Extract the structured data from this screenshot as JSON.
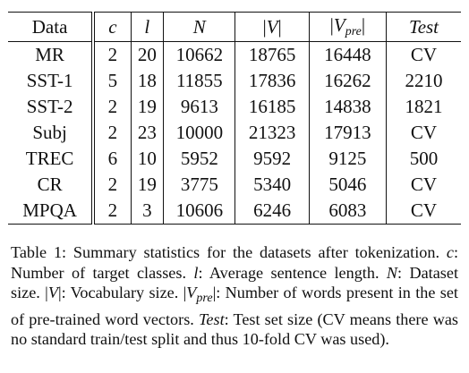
{
  "table": {
    "headers": {
      "data": "Data",
      "c": "c",
      "l": "l",
      "n": "N",
      "v_open": "|",
      "v": "V",
      "v_close": "|",
      "vpre_open": "|",
      "vpre_base": "V",
      "vpre_sub": "pre",
      "vpre_close": "|",
      "test": "Test"
    },
    "rows": [
      {
        "data": "MR",
        "c": "2",
        "l": "20",
        "n": "10662",
        "v": "18765",
        "vpre": "16448",
        "test": "CV"
      },
      {
        "data": "SST-1",
        "c": "5",
        "l": "18",
        "n": "11855",
        "v": "17836",
        "vpre": "16262",
        "test": "2210"
      },
      {
        "data": "SST-2",
        "c": "2",
        "l": "19",
        "n": "9613",
        "v": "16185",
        "vpre": "14838",
        "test": "1821"
      },
      {
        "data": "Subj",
        "c": "2",
        "l": "23",
        "n": "10000",
        "v": "21323",
        "vpre": "17913",
        "test": "CV"
      },
      {
        "data": "TREC",
        "c": "6",
        "l": "10",
        "n": "5952",
        "v": "9592",
        "vpre": "9125",
        "test": "500"
      },
      {
        "data": "CR",
        "c": "2",
        "l": "19",
        "n": "3775",
        "v": "5340",
        "vpre": "5046",
        "test": "CV"
      },
      {
        "data": "MPQA",
        "c": "2",
        "l": "3",
        "n": "10606",
        "v": "6246",
        "vpre": "6083",
        "test": "CV"
      }
    ]
  },
  "caption": {
    "t1": "Table 1:  Summary statistics for the datasets after tokenization. ",
    "c": "c",
    "t2": ": Number of target classes. ",
    "l": "l",
    "t3": ": Average sentence length. ",
    "n": "N",
    "t4": ": Dataset size. |",
    "v": "V",
    "t5": "|: Vocabulary size. |",
    "vpre_base": "V",
    "vpre_sub": "pre",
    "t6": "|: Number of words present in the set of pre-trained word vectors. ",
    "test": "Test",
    "t7": ": Test set size (CV means there was no standard train/test split and thus 10-fold CV was used)."
  }
}
